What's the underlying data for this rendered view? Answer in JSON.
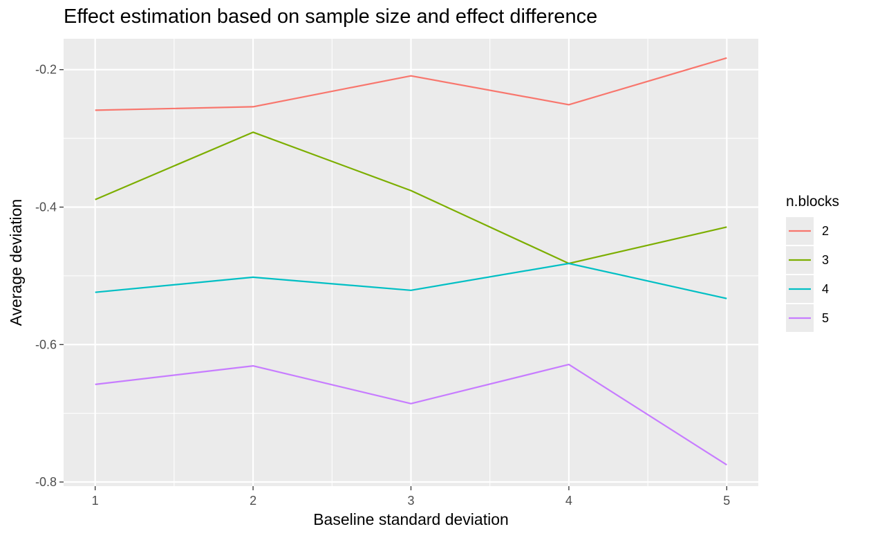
{
  "chart_data": {
    "type": "line",
    "title": "Effect estimation based on sample size and effect difference",
    "xlabel": "Baseline standard deviation",
    "ylabel": "Average deviation",
    "x": [
      1,
      2,
      3,
      4,
      5
    ],
    "xticks": [
      "1",
      "2",
      "3",
      "4",
      "5"
    ],
    "yticks": [
      -0.2,
      -0.4,
      -0.6,
      -0.8
    ],
    "yticklabels": [
      "-0.2",
      "-0.4",
      "-0.6",
      "-0.8"
    ],
    "xlim": [
      0.8,
      5.2
    ],
    "ylim": [
      -0.806,
      -0.155
    ],
    "grid": true,
    "legend": {
      "title": "n.blocks",
      "placement": "right"
    },
    "series": [
      {
        "name": "2",
        "color": "#F8766D",
        "values": [
          -0.259,
          -0.254,
          -0.209,
          -0.251,
          -0.183
        ]
      },
      {
        "name": "3",
        "color": "#7CAE00",
        "values": [
          -0.389,
          -0.291,
          -0.376,
          -0.482,
          -0.429
        ]
      },
      {
        "name": "4",
        "color": "#00BFC4",
        "values": [
          -0.524,
          -0.502,
          -0.521,
          -0.482,
          -0.533
        ]
      },
      {
        "name": "5",
        "color": "#C77CFF",
        "values": [
          -0.658,
          -0.631,
          -0.686,
          -0.629,
          -0.775
        ]
      }
    ]
  }
}
